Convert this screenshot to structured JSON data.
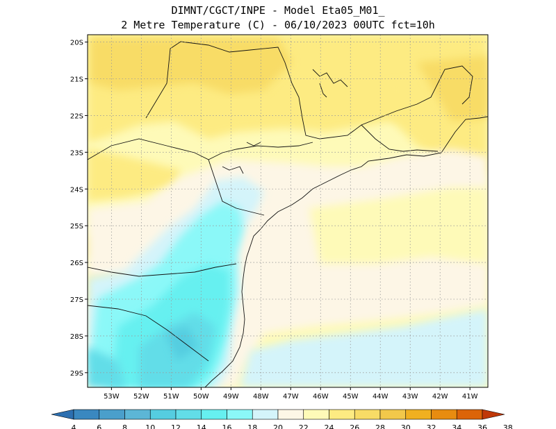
{
  "title": {
    "line1": "DIMNT/CGCT/INPE -  Model Eta05_M01_",
    "line2": "2 Metre Temperature (C) -  06/10/2023 00UTC fct=10h"
  },
  "map": {
    "lon_range": [
      -53.8,
      -40.4
    ],
    "lat_range": [
      -29.4,
      -19.8
    ],
    "lat_ticks": [
      "20S",
      "21S",
      "22S",
      "23S",
      "24S",
      "25S",
      "26S",
      "27S",
      "28S",
      "29S"
    ],
    "lon_ticks": [
      "53W",
      "52W",
      "51W",
      "50W",
      "49W",
      "48W",
      "47W",
      "46W",
      "45W",
      "44W",
      "43W",
      "42W",
      "41W"
    ],
    "grid": "dotted"
  },
  "colorbar": {
    "labels": [
      "4",
      "6",
      "8",
      "10",
      "12",
      "14",
      "16",
      "18",
      "20",
      "22",
      "24",
      "26",
      "28",
      "30",
      "32",
      "34",
      "36",
      "38"
    ],
    "colors": [
      "#2c6fb0",
      "#3a88c0",
      "#4a9fcb",
      "#5cb6d6",
      "#55cde0",
      "#62dde8",
      "#66f0f0",
      "#8bf8f8",
      "#d4f4fa",
      "#fdf6e6",
      "#fefab8",
      "#fdeb82",
      "#f8dc66",
      "#f2c84a",
      "#f0b020",
      "#e88c10",
      "#dc6408",
      "#c03808"
    ]
  }
}
